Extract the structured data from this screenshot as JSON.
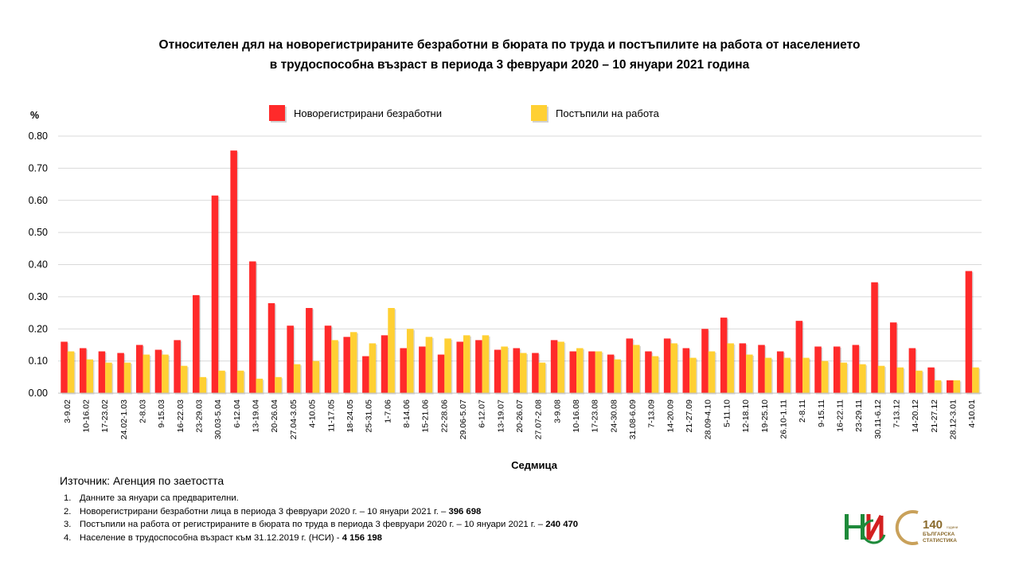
{
  "title_line1": "Относителен дял на новорегистрираните безработни в бюрата по труда и постъпилите на работа от населението",
  "title_line2": "в трудоспособна възраст в периода 3 февруари 2020  – 10 януари 2021 година",
  "colors": {
    "series1": "#ff2a2a",
    "series2": "#ffd033",
    "grid": "#d9d9d9",
    "axis": "#bfbfbf"
  },
  "chart_data": {
    "type": "bar",
    "ylabel": "%",
    "xlabel": "Седмица",
    "ylim": [
      0,
      0.8
    ],
    "yticks": [
      "0.00",
      "0.10",
      "0.20",
      "0.30",
      "0.40",
      "0.50",
      "0.60",
      "0.70",
      "0.80"
    ],
    "grid": true,
    "legend_position": "top",
    "categories": [
      "3-9.02",
      "10-16.02",
      "17-23.02",
      "24.02-1.03",
      "2-8.03",
      "9-15.03",
      "16-22.03",
      "23-29.03",
      "30.03-5.04",
      "6-12.04",
      "13-19.04",
      "20-26.04",
      "27.04-3.05",
      "4-10.05",
      "11-17.05",
      "18-24.05",
      "25-31.05",
      "1-7.06",
      "8-14.06",
      "15-21.06",
      "22-28.06",
      "29.06-5.07",
      "6-12.07",
      "13-19.07",
      "20-26.07",
      "27.07-2.08",
      "3-9.08",
      "10-16.08",
      "17-23.08",
      "24-30.08",
      "31.08-6.09",
      "7-13.09",
      "14-20.09",
      "21-27.09",
      "28.09-4.10",
      "5-11.10",
      "12-18.10",
      "19-25.10",
      "26.10-1.11",
      "2-8.11",
      "9-15.11",
      "16-22.11",
      "23-29.11",
      "30.11-6.12",
      "7-13.12",
      "14-20.12",
      "21-27.12",
      "28.12-3.01",
      "4-10.01"
    ],
    "series": [
      {
        "name": "Новорегистрирани безработни",
        "values": [
          0.16,
          0.14,
          0.13,
          0.125,
          0.15,
          0.135,
          0.165,
          0.305,
          0.615,
          0.755,
          0.41,
          0.28,
          0.21,
          0.265,
          0.21,
          0.175,
          0.115,
          0.18,
          0.14,
          0.145,
          0.12,
          0.16,
          0.165,
          0.135,
          0.14,
          0.125,
          0.165,
          0.13,
          0.13,
          0.12,
          0.17,
          0.13,
          0.17,
          0.14,
          0.2,
          0.235,
          0.155,
          0.15,
          0.13,
          0.225,
          0.145,
          0.145,
          0.15,
          0.345,
          0.22,
          0.14,
          0.08,
          0.04,
          0.38
        ]
      },
      {
        "name": "Постъпили на работа",
        "values": [
          0.13,
          0.105,
          0.095,
          0.095,
          0.12,
          0.12,
          0.085,
          0.05,
          0.07,
          0.07,
          0.045,
          0.05,
          0.09,
          0.1,
          0.165,
          0.19,
          0.155,
          0.265,
          0.2,
          0.175,
          0.17,
          0.18,
          0.18,
          0.145,
          0.125,
          0.095,
          0.16,
          0.14,
          0.13,
          0.105,
          0.15,
          0.115,
          0.155,
          0.11,
          0.13,
          0.155,
          0.12,
          0.11,
          0.11,
          0.11,
          0.1,
          0.095,
          0.09,
          0.085,
          0.08,
          0.07,
          0.04,
          0.04,
          0.08
        ]
      }
    ]
  },
  "source": "Източник: Агенция по заетостта",
  "notes": [
    {
      "num": "1.",
      "text": "Данните за януари са предварителни.",
      "bold": ""
    },
    {
      "num": "2.",
      "text": "Новорегистрирани безработни лица в периода 3 февруари 2020 г. – 10 януари 2021 г. – ",
      "bold": "396 698"
    },
    {
      "num": "3.",
      "text": "Постъпили на работа от регистрираните в бюрата по труда в периода 3 февруари 2020 г. – 10 януари 2021 г. – ",
      "bold": "240 470"
    },
    {
      "num": "4.",
      "text": "Население в трудоспособна възраст към 31.12.2019 г. (НСИ)  - ",
      "bold": "4 156 198"
    }
  ],
  "logo_nsi": {
    "icon": "nsi-logo",
    "lettering": "НСИ"
  },
  "logo_140": {
    "icon": "140-years-logo",
    "number": "140",
    "small": "години",
    "line1": "БЪЛГАРСКА",
    "line2": "СТАТИСТИКА"
  }
}
